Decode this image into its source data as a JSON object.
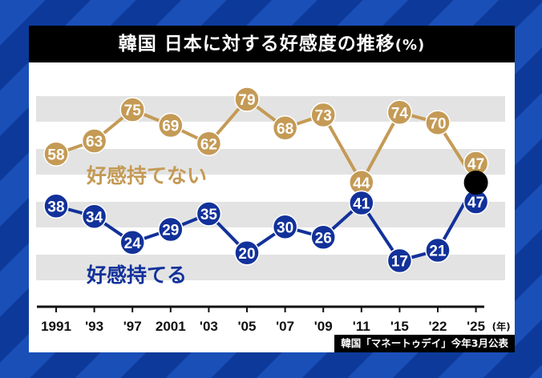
{
  "title": "韓国 日本に対する好感度の推移",
  "title_unit": "(%)",
  "source": "韓国「マネートゥデイ」今年3月公表",
  "chart_data": {
    "type": "line",
    "title": "韓国 日本に対する好感度の推移(%)",
    "categories": [
      "1991",
      "'93",
      "'97",
      "2001",
      "'03",
      "'05",
      "'07",
      "'09",
      "'11",
      "'15",
      "'22",
      "'25"
    ],
    "x_unit": "(年)",
    "series": [
      {
        "name": "好感持てない",
        "color": "#c49a55",
        "values": [
          58,
          63,
          75,
          69,
          62,
          79,
          68,
          73,
          44,
          74,
          70,
          47
        ]
      },
      {
        "name": "好感持てる",
        "color": "#12319a",
        "values": [
          38,
          34,
          24,
          29,
          35,
          20,
          30,
          26,
          41,
          17,
          21,
          47
        ]
      }
    ],
    "grid": "horizontal bands",
    "legend": "inline labels"
  }
}
